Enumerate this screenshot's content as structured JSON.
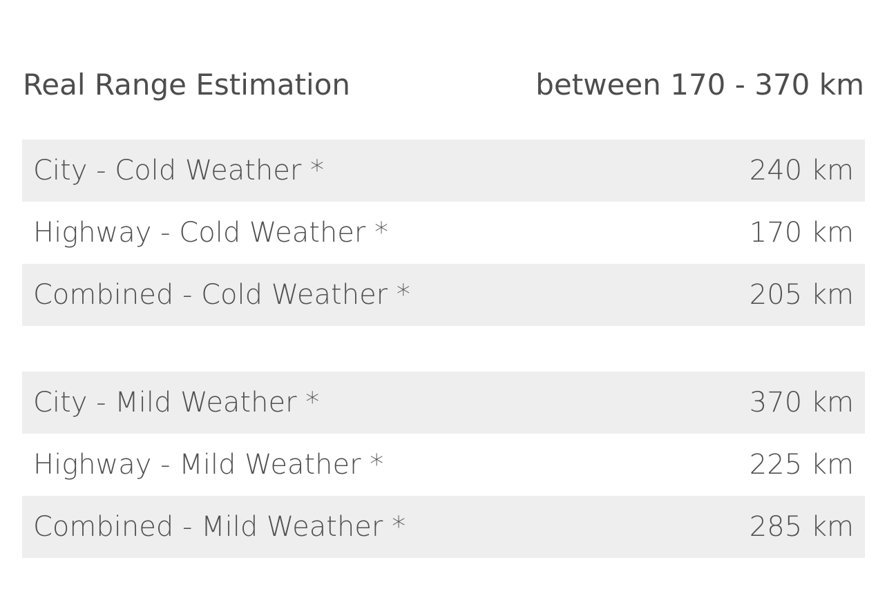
{
  "header": {
    "title": "Real Range Estimation",
    "range": "between 170 - 370 km"
  },
  "tables": [
    {
      "rows": [
        [
          "City - Cold Weather *",
          "240 km"
        ],
        [
          "Highway - Cold Weather *",
          "170 km"
        ],
        [
          "Combined - Cold Weather *",
          "205 km"
        ]
      ]
    },
    {
      "rows": [
        [
          "City - Mild Weather *",
          "370 km"
        ],
        [
          "Highway - Mild Weather *",
          "225 km"
        ],
        [
          "Combined - Mild Weather *",
          "285 km"
        ]
      ]
    }
  ]
}
